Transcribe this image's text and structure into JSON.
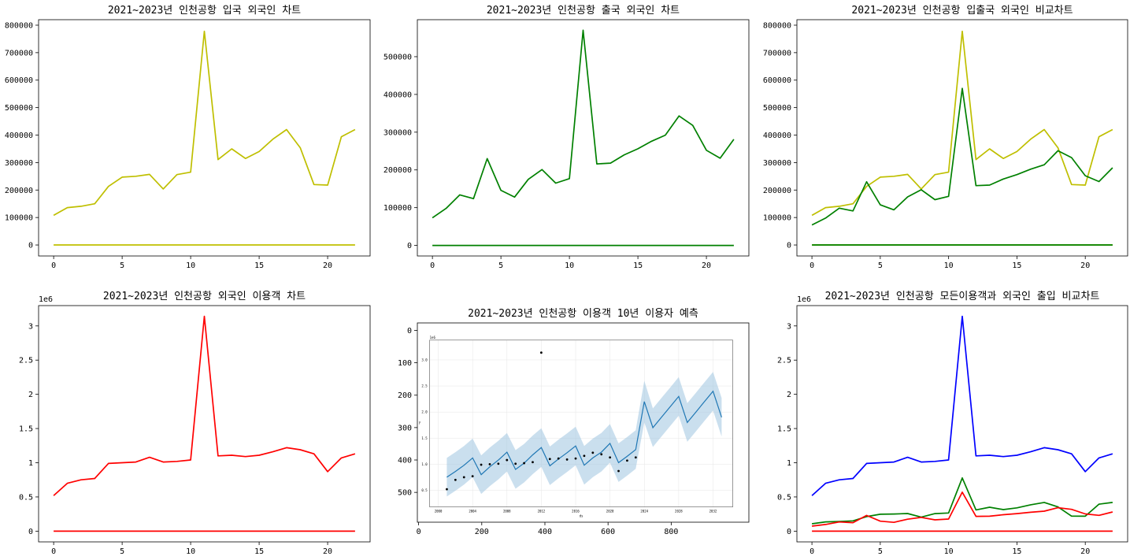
{
  "chart_data": [
    {
      "type": "line",
      "title": "2021~2023년 인천공항 입국 외국인 차트",
      "xlim": [
        -1.1,
        23.1
      ],
      "ylim": [
        -40000,
        820000
      ],
      "xticks": [
        0,
        5,
        10,
        15,
        20
      ],
      "yticks": [
        0,
        100000,
        200000,
        300000,
        400000,
        500000,
        600000,
        700000,
        800000
      ],
      "series": [
        {
          "color": "#bfbf00",
          "x": [
            0,
            1,
            2,
            3,
            4,
            5,
            6,
            7,
            8,
            9,
            10,
            11,
            12,
            13,
            14,
            15,
            16,
            17,
            18,
            19,
            20,
            21,
            22
          ],
          "values": [
            108000,
            136000,
            141000,
            150000,
            213000,
            247000,
            250000,
            257000,
            204000,
            256000,
            265000,
            778000,
            311000,
            350000,
            315000,
            340000,
            385000,
            420000,
            354000,
            220000,
            218000,
            394000,
            420000
          ]
        },
        {
          "color": "#bfbf00",
          "x": [
            0,
            22
          ],
          "values": [
            0,
            0
          ]
        }
      ]
    },
    {
      "type": "line",
      "title": "2021~2023년 인천공항 출국 외국인 차트",
      "xlim": [
        -1.1,
        23.1
      ],
      "ylim": [
        -28000,
        598000
      ],
      "xticks": [
        0,
        5,
        10,
        15,
        20
      ],
      "yticks": [
        0,
        100000,
        200000,
        300000,
        400000,
        500000
      ],
      "series": [
        {
          "color": "#008000",
          "x": [
            0,
            1,
            2,
            3,
            4,
            5,
            6,
            7,
            8,
            9,
            10,
            11,
            12,
            13,
            14,
            15,
            16,
            17,
            18,
            19,
            20,
            21,
            22
          ],
          "values": [
            73000,
            98000,
            134000,
            124000,
            230000,
            146000,
            128000,
            175000,
            201000,
            165000,
            177000,
            570000,
            216000,
            218000,
            240000,
            256000,
            276000,
            292000,
            343000,
            318000,
            252000,
            231000,
            281000
          ]
        },
        {
          "color": "#008000",
          "x": [
            0,
            22
          ],
          "values": [
            0,
            0
          ]
        }
      ]
    },
    {
      "type": "line",
      "title": "2021~2023년 인천공항 입출국 외국인 비교차트",
      "xlim": [
        -1.1,
        23.1
      ],
      "ylim": [
        -40000,
        820000
      ],
      "xticks": [
        0,
        5,
        10,
        15,
        20
      ],
      "yticks": [
        0,
        100000,
        200000,
        300000,
        400000,
        500000,
        600000,
        700000,
        800000
      ],
      "series": [
        {
          "color": "#bfbf00",
          "x": [
            0,
            1,
            2,
            3,
            4,
            5,
            6,
            7,
            8,
            9,
            10,
            11,
            12,
            13,
            14,
            15,
            16,
            17,
            18,
            19,
            20,
            21,
            22
          ],
          "values": [
            108000,
            136000,
            141000,
            150000,
            213000,
            247000,
            250000,
            257000,
            204000,
            256000,
            265000,
            778000,
            311000,
            350000,
            315000,
            340000,
            385000,
            420000,
            354000,
            220000,
            218000,
            394000,
            420000
          ]
        },
        {
          "color": "#008000",
          "x": [
            0,
            1,
            2,
            3,
            4,
            5,
            6,
            7,
            8,
            9,
            10,
            11,
            12,
            13,
            14,
            15,
            16,
            17,
            18,
            19,
            20,
            21,
            22
          ],
          "values": [
            73000,
            98000,
            134000,
            124000,
            230000,
            146000,
            128000,
            175000,
            201000,
            165000,
            177000,
            570000,
            216000,
            218000,
            240000,
            256000,
            276000,
            292000,
            343000,
            318000,
            252000,
            231000,
            281000
          ]
        },
        {
          "color": "#bfbf00",
          "x": [
            0,
            22
          ],
          "values": [
            0,
            0
          ]
        },
        {
          "color": "#008000",
          "x": [
            0,
            22
          ],
          "values": [
            0,
            0
          ]
        }
      ]
    },
    {
      "type": "line",
      "title": "2021~2023년 인천공항 외국인 이용객 차트",
      "multiplier": "1e6",
      "xlim": [
        -1.1,
        23.1
      ],
      "ylim": [
        -0.157,
        3.297
      ],
      "xticks": [
        0,
        5,
        10,
        15,
        20
      ],
      "yticks": [
        0.0,
        0.5,
        1.0,
        1.5,
        2.0,
        2.5,
        3.0
      ],
      "series": [
        {
          "color": "#ff0000",
          "x": [
            0,
            1,
            2,
            3,
            4,
            5,
            6,
            7,
            8,
            9,
            10,
            11,
            12,
            13,
            14,
            15,
            16,
            17,
            18,
            19,
            20,
            21,
            22
          ],
          "values": [
            0.52,
            0.7,
            0.75,
            0.77,
            0.99,
            1.0,
            1.01,
            1.08,
            1.01,
            1.02,
            1.04,
            3.14,
            1.1,
            1.11,
            1.09,
            1.11,
            1.16,
            1.22,
            1.19,
            1.13,
            0.87,
            1.07,
            1.13
          ]
        },
        {
          "color": "#ff0000",
          "x": [
            0,
            22
          ],
          "values": [
            0,
            0
          ]
        }
      ]
    },
    {
      "type": "image",
      "title": "2021~2023년 인천공항 이용객 10년 이용자 예측",
      "xlim": [
        -4,
        1046
      ],
      "ylim": [
        592,
        -23
      ],
      "xticks": [
        0,
        200,
        400,
        600,
        800
      ],
      "yticks": [
        0,
        100,
        200,
        300,
        400,
        500
      ],
      "inset": {
        "multiplier": "1e6",
        "xlabel": "ds",
        "ylabel": "y",
        "xlim": [
          1999.0,
          2034.3
        ],
        "ylim": [
          0.18,
          3.38
        ],
        "xticks": [
          2000,
          2004,
          2008,
          2012,
          2016,
          2020,
          2024,
          2028,
          2032
        ],
        "yticks": [
          0.5,
          1.0,
          1.5,
          2.0,
          2.5,
          3.0
        ],
        "observed": {
          "x": [
            2001.0,
            2002.0,
            2003.0,
            2004.0,
            2005.0,
            2006.0,
            2007.0,
            2008.0,
            2009.0,
            2010.0,
            2011.0,
            2012.0,
            2013.0,
            2014.0,
            2015.0,
            2016.0,
            2017.0,
            2018.0,
            2019.0,
            2020.0,
            2021.0,
            2022.0,
            2023.0
          ],
          "y": [
            0.52,
            0.7,
            0.75,
            0.77,
            0.99,
            1.0,
            1.01,
            1.08,
            1.01,
            1.02,
            1.04,
            3.14,
            1.1,
            1.11,
            1.09,
            1.11,
            1.16,
            1.22,
            1.19,
            1.13,
            0.87,
            1.07,
            1.13
          ]
        },
        "forecast": {
          "x": [
            2001,
            2002,
            2003,
            2004,
            2005,
            2006,
            2007,
            2008,
            2009,
            2010,
            2011,
            2012,
            2013,
            2014,
            2015,
            2016,
            2017,
            2018,
            2019,
            2020,
            2021,
            2022,
            2023,
            2024,
            2025,
            2026,
            2027,
            2028,
            2029,
            2030,
            2031,
            2032,
            2033
          ],
          "yhat": [
            0.75,
            0.86,
            0.98,
            1.12,
            0.8,
            0.95,
            1.08,
            1.23,
            0.9,
            1.02,
            1.18,
            1.32,
            0.97,
            1.1,
            1.22,
            1.35,
            0.98,
            1.12,
            1.23,
            1.4,
            1.03,
            1.15,
            1.28,
            2.2,
            1.7,
            1.9,
            2.1,
            2.3,
            1.8,
            2.0,
            2.2,
            2.4,
            1.9
          ],
          "lower": [
            0.38,
            0.49,
            0.61,
            0.75,
            0.43,
            0.58,
            0.71,
            0.86,
            0.53,
            0.65,
            0.81,
            0.95,
            0.6,
            0.73,
            0.85,
            0.98,
            0.61,
            0.75,
            0.86,
            1.03,
            0.66,
            0.78,
            0.91,
            1.8,
            1.33,
            1.53,
            1.73,
            1.93,
            1.43,
            1.63,
            1.83,
            2.03,
            1.53
          ],
          "upper": [
            1.12,
            1.23,
            1.35,
            1.49,
            1.17,
            1.32,
            1.45,
            1.6,
            1.27,
            1.39,
            1.55,
            1.69,
            1.34,
            1.47,
            1.59,
            1.72,
            1.35,
            1.49,
            1.6,
            1.77,
            1.4,
            1.52,
            1.65,
            2.6,
            2.07,
            2.27,
            2.47,
            2.67,
            2.17,
            2.37,
            2.57,
            2.77,
            2.27
          ]
        }
      }
    },
    {
      "type": "line",
      "title": "2021~2023년 인천공항 모든이용객과 외국인 출입 비교차트",
      "multiplier": "1e6",
      "xlim": [
        -1.1,
        23.1
      ],
      "ylim": [
        -0.157,
        3.297
      ],
      "xticks": [
        0,
        5,
        10,
        15,
        20
      ],
      "yticks": [
        0.0,
        0.5,
        1.0,
        1.5,
        2.0,
        2.5,
        3.0
      ],
      "series": [
        {
          "color": "#0000ff",
          "x": [
            0,
            1,
            2,
            3,
            4,
            5,
            6,
            7,
            8,
            9,
            10,
            11,
            12,
            13,
            14,
            15,
            16,
            17,
            18,
            19,
            20,
            21,
            22
          ],
          "values": [
            0.52,
            0.7,
            0.75,
            0.77,
            0.99,
            1.0,
            1.01,
            1.08,
            1.01,
            1.02,
            1.04,
            3.14,
            1.1,
            1.11,
            1.09,
            1.11,
            1.16,
            1.22,
            1.19,
            1.13,
            0.87,
            1.07,
            1.13
          ]
        },
        {
          "color": "#008000",
          "x": [
            0,
            1,
            2,
            3,
            4,
            5,
            6,
            7,
            8,
            9,
            10,
            11,
            12,
            13,
            14,
            15,
            16,
            17,
            18,
            19,
            20,
            21,
            22
          ],
          "values": [
            0.108,
            0.136,
            0.141,
            0.15,
            0.213,
            0.247,
            0.25,
            0.257,
            0.204,
            0.256,
            0.265,
            0.778,
            0.311,
            0.35,
            0.315,
            0.34,
            0.385,
            0.42,
            0.354,
            0.22,
            0.218,
            0.394,
            0.42
          ]
        },
        {
          "color": "#ff0000",
          "x": [
            0,
            1,
            2,
            3,
            4,
            5,
            6,
            7,
            8,
            9,
            10,
            11,
            12,
            13,
            14,
            15,
            16,
            17,
            18,
            19,
            20,
            21,
            22
          ],
          "values": [
            0.073,
            0.098,
            0.134,
            0.124,
            0.23,
            0.146,
            0.128,
            0.175,
            0.201,
            0.165,
            0.177,
            0.57,
            0.216,
            0.218,
            0.24,
            0.256,
            0.276,
            0.292,
            0.343,
            0.318,
            0.252,
            0.231,
            0.281
          ]
        },
        {
          "color": "#ff0000",
          "x": [
            0,
            22
          ],
          "values": [
            0,
            0
          ]
        }
      ]
    }
  ]
}
